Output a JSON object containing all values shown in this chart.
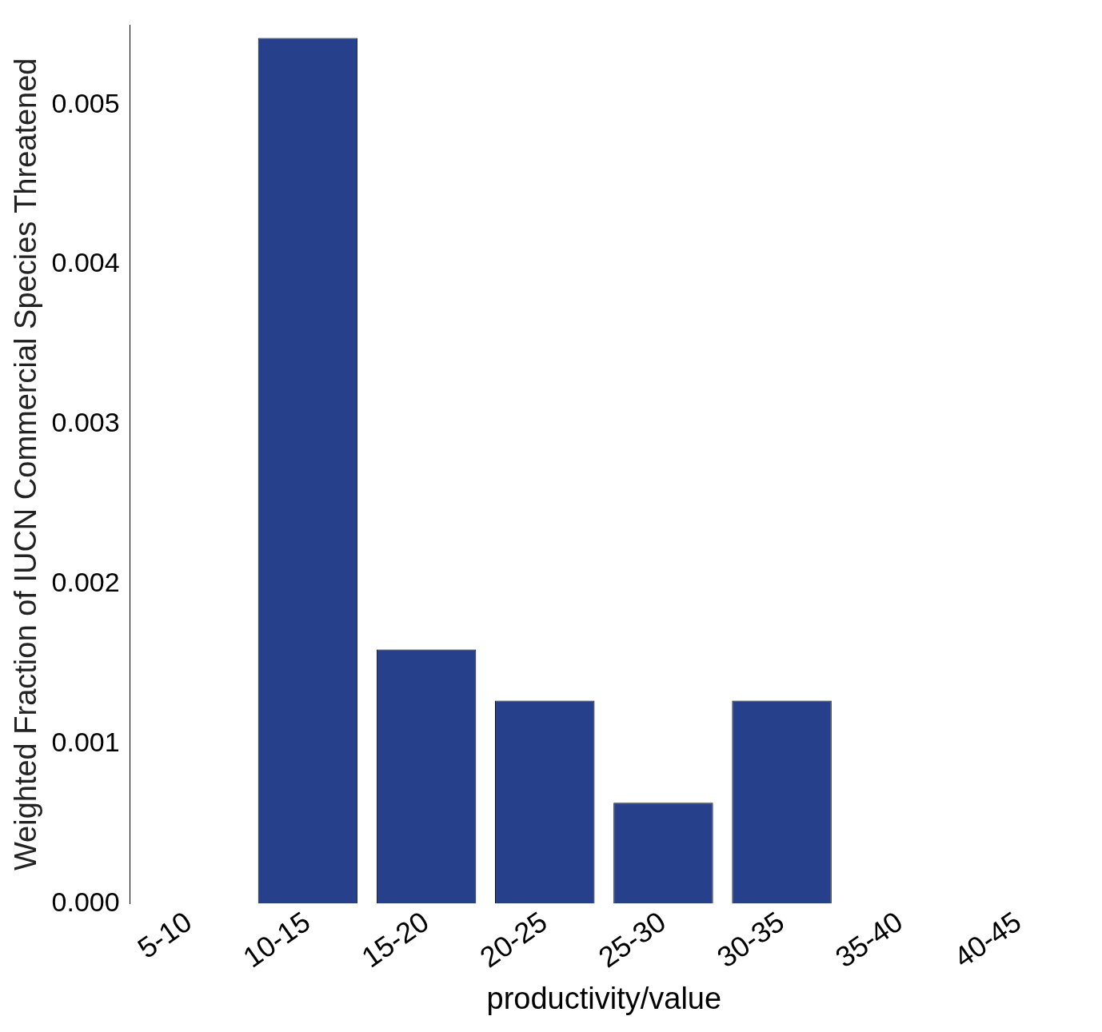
{
  "chart_data": {
    "type": "bar",
    "xlabel": "productivity/value",
    "ylabel": "Weighted Fraction of IUCN Commercial Species Threatened",
    "categories": [
      "5-10",
      "10-15",
      "15-20",
      "20-25",
      "25-30",
      "30-35",
      "35-40",
      "40-45"
    ],
    "values": [
      0,
      0.00542,
      0.00159,
      0.00127,
      0.00063,
      0.00127,
      0,
      0
    ],
    "color": "#26408b",
    "ylim": [
      0,
      0.0055
    ],
    "yticks": [
      {
        "value": 0,
        "label": "0.000"
      },
      {
        "value": 0.001,
        "label": "0.001"
      },
      {
        "value": 0.002,
        "label": "0.002"
      },
      {
        "value": 0.003,
        "label": "0.003"
      },
      {
        "value": 0.004,
        "label": "0.004"
      },
      {
        "value": 0.005,
        "label": "0.005"
      }
    ],
    "grid": false,
    "legend": false
  }
}
